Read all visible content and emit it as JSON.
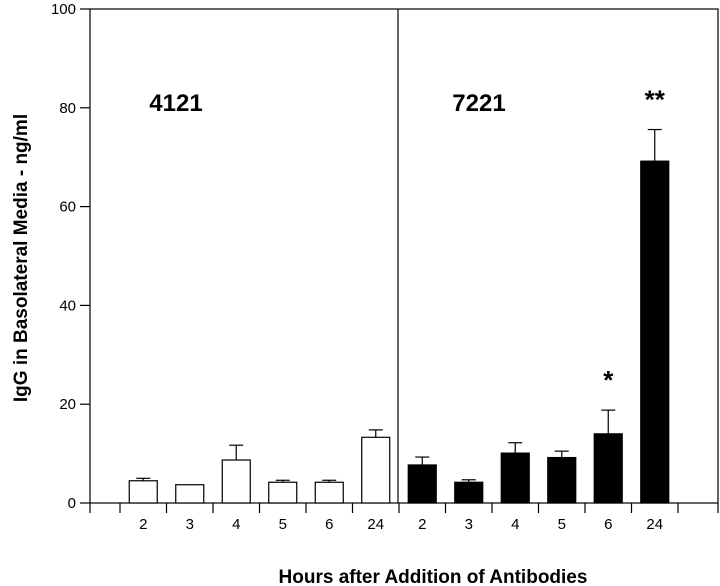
{
  "chart_data": {
    "type": "bar",
    "xlabel": "Hours after Addition of Antibodies",
    "ylabel": "IgG in Basolateral Media - ng/ml",
    "ylim": [
      0,
      100
    ],
    "yticks": [
      "0",
      "20",
      "40",
      "60",
      "80",
      "100"
    ],
    "grid": false,
    "legend": "none",
    "groups": [
      {
        "label": "4121",
        "fill": "#ffffff",
        "categories": [
          "2",
          "3",
          "4",
          "5",
          "6",
          "24"
        ],
        "values": [
          4.5,
          3.7,
          8.7,
          4.2,
          4.2,
          13.3
        ],
        "errors": [
          0.5,
          0.0,
          3.0,
          0.4,
          0.4,
          1.5
        ]
      },
      {
        "label": "7221",
        "fill": "#000000",
        "categories": [
          "2",
          "3",
          "4",
          "5",
          "6",
          "24"
        ],
        "values": [
          7.7,
          4.2,
          10.1,
          9.2,
          14.0,
          69.2
        ],
        "errors": [
          1.6,
          0.5,
          2.1,
          1.3,
          4.8,
          6.4
        ]
      }
    ],
    "annotations": [
      {
        "text": "*",
        "group": 1,
        "index": 4
      },
      {
        "text": "**",
        "group": 1,
        "index": 5
      }
    ]
  }
}
